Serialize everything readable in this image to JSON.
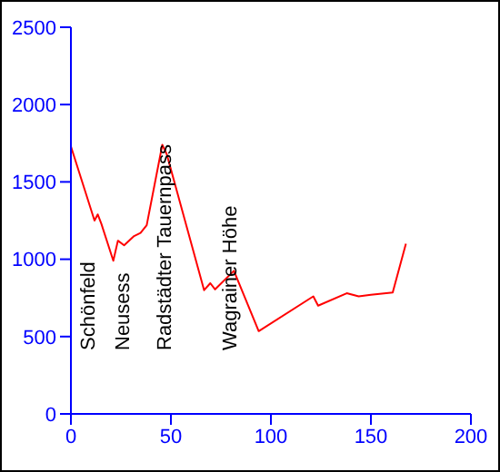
{
  "chart_data": {
    "type": "line",
    "xlim": [
      0,
      200
    ],
    "xticks": [
      0,
      50,
      100,
      150,
      200
    ],
    "ylim": [
      0,
      2500
    ],
    "yticks": [
      0,
      500,
      1000,
      1500,
      2000,
      2500
    ],
    "grid": false,
    "legend": false,
    "x": [
      0,
      11.8,
      13.4,
      15.2,
      21.2,
      23.5,
      26.6,
      31.6,
      34.8,
      37.9,
      45.7,
      47.9,
      66.6,
      69.7,
      72.1,
      81.5,
      93.9,
      121.2,
      123.6,
      137.9,
      143.9,
      150,
      160.9,
      167.5
    ],
    "series": [
      {
        "color": "#ff0000",
        "values": [
          1730,
          1250,
          1290,
          1230,
          990,
          1120,
          1090,
          1150,
          1170,
          1220,
          1740,
          1680,
          800,
          845,
          805,
          925,
          535,
          760,
          700,
          780,
          760,
          770,
          785,
          1100
        ]
      }
    ],
    "annotations": [
      "Schönfeld",
      "Neusess",
      "Radstädter Tauernpass",
      "Wagrainer Höhe"
    ]
  }
}
